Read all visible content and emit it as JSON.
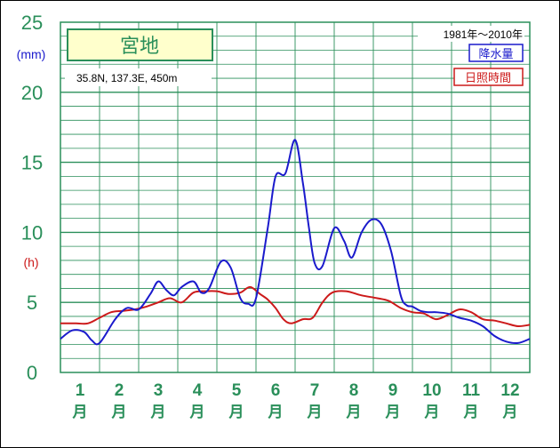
{
  "chart_data": {
    "type": "line",
    "title": "宮地",
    "location": "35.8N,  137.3E,  450m",
    "period": "1981年〜2010年",
    "y_unit_left_top": "(mm)",
    "y_unit_left_mid": "(h)",
    "ylim": [
      0,
      25
    ],
    "y_ticks": [
      "25",
      "20",
      "15",
      "10",
      "5",
      "0"
    ],
    "months": [
      "1",
      "2",
      "3",
      "4",
      "5",
      "6",
      "7",
      "8",
      "9",
      "10",
      "11",
      "12"
    ],
    "month_suffix": "月",
    "x_range_months": [
      0.5,
      12.5
    ],
    "series": [
      {
        "name": "降水量",
        "color": "#1a1acc",
        "x": [
          0.5,
          0.8,
          1.1,
          1.3,
          1.5,
          1.9,
          2.2,
          2.5,
          2.8,
          3.0,
          3.2,
          3.4,
          3.6,
          3.9,
          4.1,
          4.3,
          4.6,
          4.85,
          5.1,
          5.3,
          5.5,
          5.8,
          6.0,
          6.25,
          6.5,
          6.7,
          6.85,
          7.0,
          7.2,
          7.5,
          7.75,
          7.95,
          8.2,
          8.45,
          8.7,
          8.95,
          9.2,
          9.35,
          9.5,
          9.7,
          9.9,
          10.1,
          10.4,
          10.7,
          11.0,
          11.3,
          11.6,
          11.9,
          12.2,
          12.5
        ],
        "values": [
          2.4,
          3.0,
          2.9,
          2.3,
          2.1,
          3.8,
          4.6,
          4.5,
          5.6,
          6.5,
          5.9,
          5.5,
          6.1,
          6.5,
          5.7,
          6.0,
          7.9,
          7.5,
          5.3,
          4.9,
          5.3,
          10.3,
          14.0,
          14.2,
          16.6,
          13.5,
          10.4,
          7.8,
          7.6,
          10.3,
          9.4,
          8.2,
          10.0,
          10.9,
          10.6,
          8.7,
          5.5,
          4.8,
          4.7,
          4.4,
          4.3,
          4.3,
          4.2,
          3.9,
          3.7,
          3.3,
          2.6,
          2.2,
          2.1,
          2.4
        ]
      },
      {
        "name": "日照時間",
        "color": "#cc1a1a",
        "x": [
          0.5,
          0.9,
          1.2,
          1.5,
          1.8,
          2.1,
          2.4,
          2.7,
          3.0,
          3.3,
          3.6,
          3.9,
          4.2,
          4.5,
          4.8,
          5.1,
          5.35,
          5.6,
          5.8,
          6.0,
          6.2,
          6.4,
          6.7,
          6.95,
          7.2,
          7.45,
          7.8,
          8.2,
          8.6,
          8.9,
          9.2,
          9.5,
          9.8,
          10.1,
          10.4,
          10.7,
          11.0,
          11.3,
          11.6,
          11.9,
          12.2,
          12.5
        ],
        "values": [
          3.5,
          3.5,
          3.5,
          3.9,
          4.3,
          4.4,
          4.5,
          4.7,
          5.0,
          5.3,
          5.0,
          5.7,
          5.8,
          5.8,
          5.6,
          5.7,
          6.1,
          5.6,
          5.2,
          4.6,
          3.8,
          3.5,
          3.8,
          3.9,
          5.0,
          5.7,
          5.8,
          5.5,
          5.3,
          5.1,
          4.6,
          4.3,
          4.2,
          3.8,
          4.1,
          4.5,
          4.3,
          3.8,
          3.7,
          3.5,
          3.3,
          3.4
        ]
      }
    ],
    "grid": true,
    "legend_placement": "top-right"
  }
}
